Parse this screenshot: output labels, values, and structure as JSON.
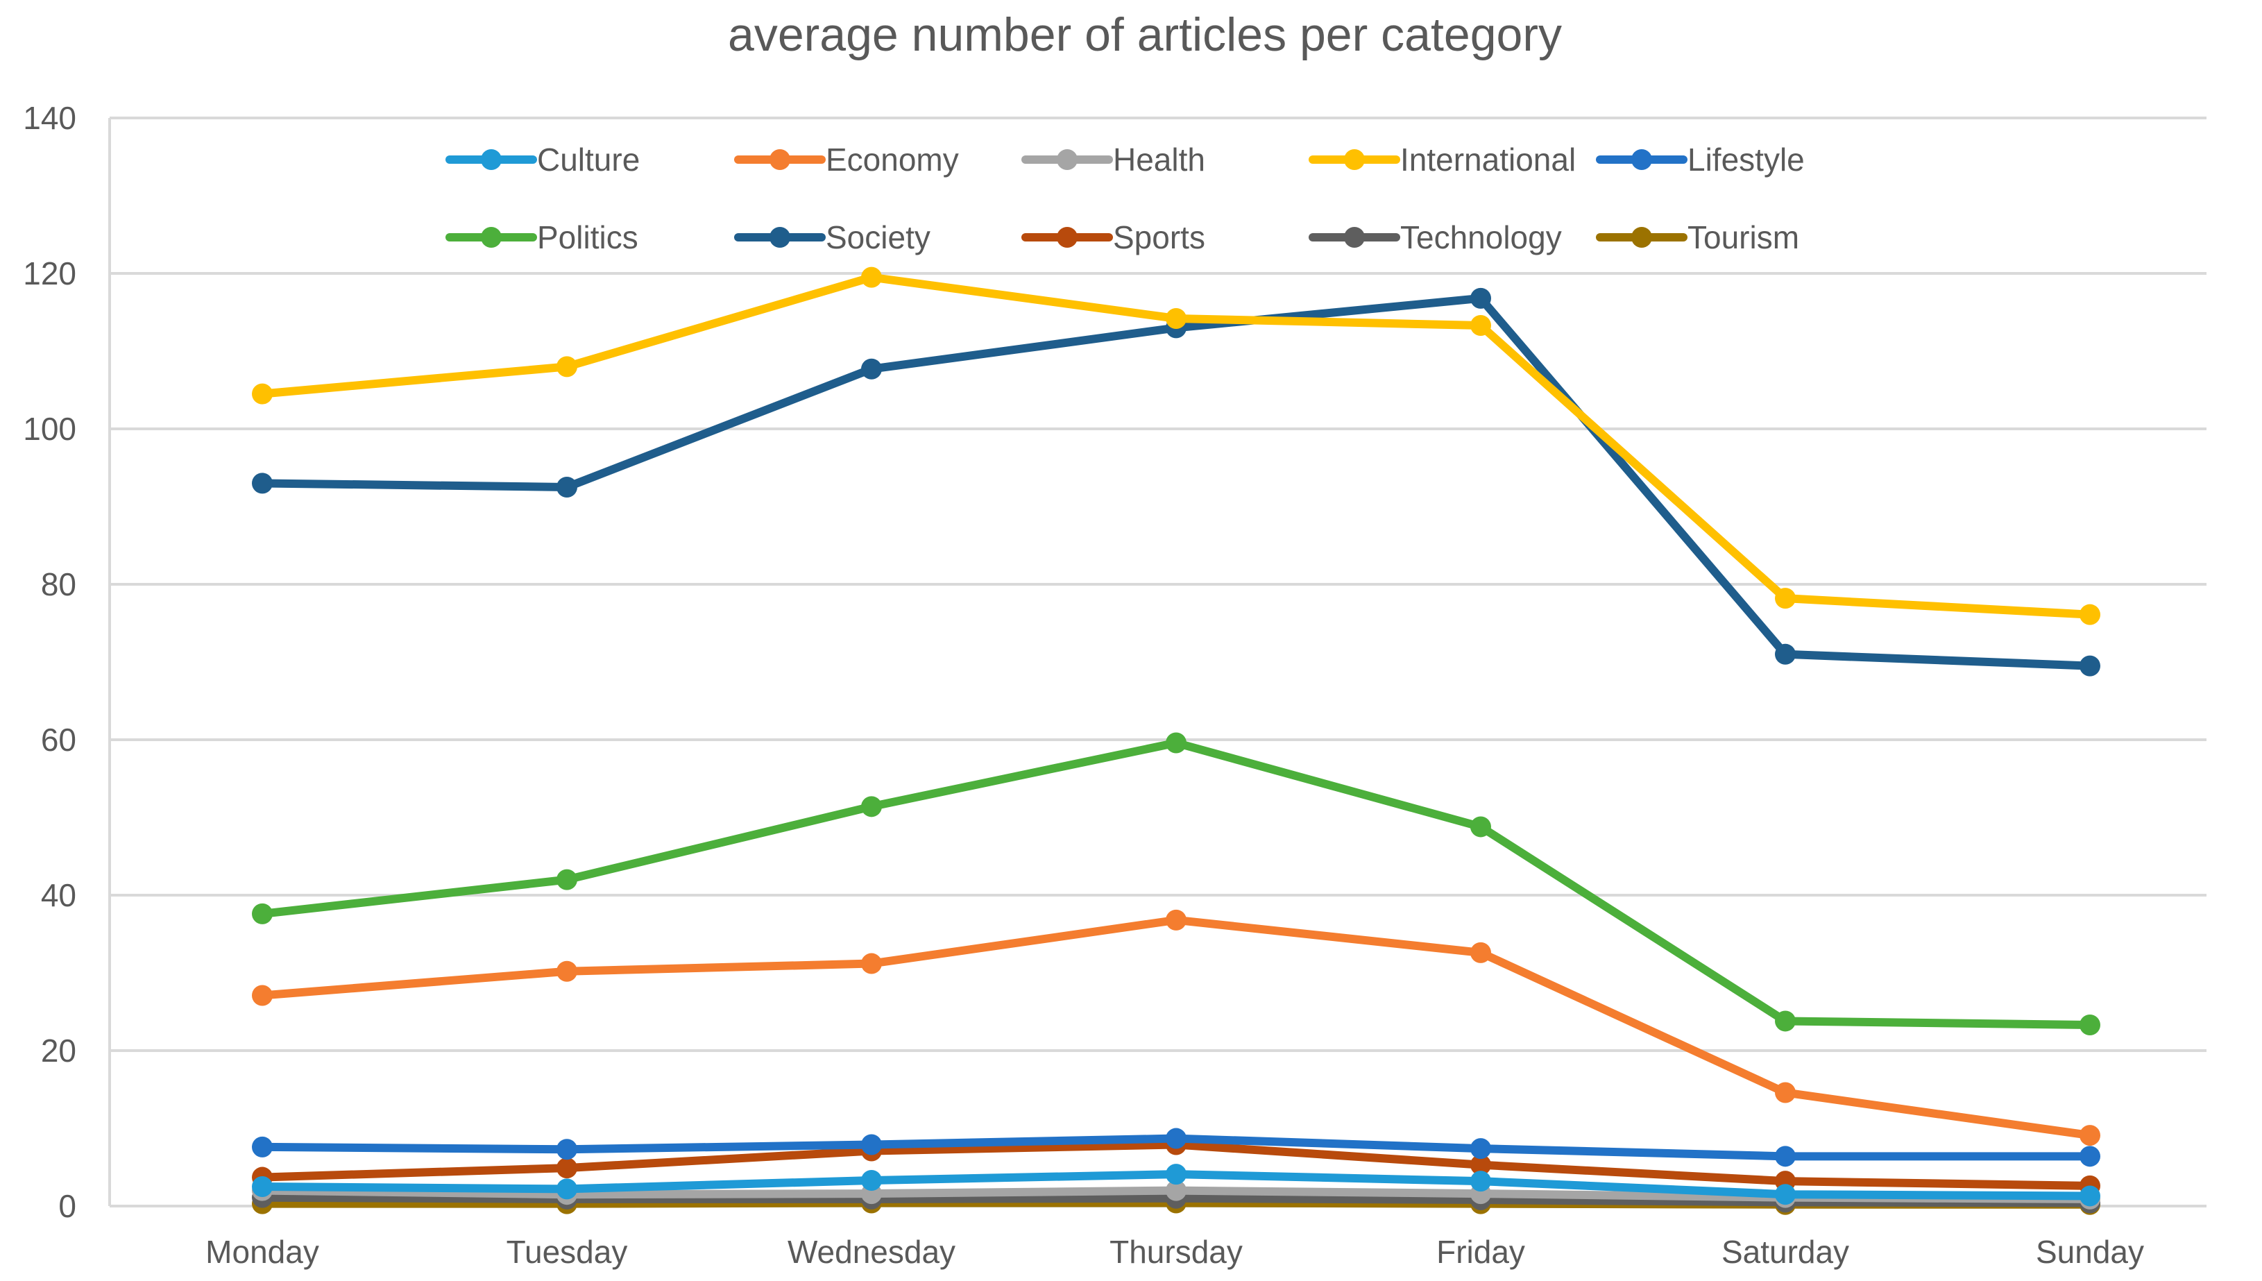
{
  "chart_data": {
    "type": "line",
    "title": "average number of articles per category",
    "xlabel": "",
    "ylabel": "",
    "categories": [
      "Monday",
      "Tuesday",
      "Wednesday",
      "Thursday",
      "Friday",
      "Saturday",
      "Sunday"
    ],
    "ylim": [
      0,
      140
    ],
    "yticks": [
      0,
      20,
      40,
      60,
      80,
      100,
      120,
      140
    ],
    "grid": true,
    "legend_position": "top",
    "series": [
      {
        "name": "Culture",
        "color": "#1f9ad6",
        "values": [
          2.5,
          2.2,
          3.3,
          4.1,
          3.2,
          1.5,
          1.3
        ]
      },
      {
        "name": "Economy",
        "color": "#f47d2f",
        "values": [
          27.1,
          30.2,
          31.2,
          36.8,
          32.6,
          14.6,
          9.1
        ]
      },
      {
        "name": "Health",
        "color": "#a5a5a5",
        "values": [
          2.0,
          1.5,
          1.6,
          2.0,
          1.6,
          1.1,
          0.9
        ]
      },
      {
        "name": "International",
        "color": "#ffc000",
        "values": [
          104.5,
          108.0,
          119.5,
          114.2,
          113.3,
          78.2,
          76.1
        ]
      },
      {
        "name": "Lifestyle",
        "color": "#2272c7",
        "values": [
          7.6,
          7.3,
          7.9,
          8.7,
          7.4,
          6.4,
          6.4
        ]
      },
      {
        "name": "Politics",
        "color": "#4caf3b",
        "values": [
          37.6,
          42.0,
          51.4,
          59.6,
          48.8,
          23.8,
          23.3
        ]
      },
      {
        "name": "Society",
        "color": "#1f5d8c",
        "values": [
          93.0,
          92.5,
          107.7,
          113.0,
          116.8,
          71.0,
          69.5
        ]
      },
      {
        "name": "Sports",
        "color": "#b84a0c",
        "values": [
          3.7,
          4.9,
          7.1,
          7.9,
          5.3,
          3.2,
          2.6
        ]
      },
      {
        "name": "Technology",
        "color": "#5e5e5e",
        "values": [
          1.1,
          0.9,
          0.9,
          1.0,
          0.8,
          0.5,
          0.4
        ]
      },
      {
        "name": "Tourism",
        "color": "#9b7200",
        "values": [
          0.3,
          0.3,
          0.4,
          0.4,
          0.3,
          0.2,
          0.2
        ]
      }
    ]
  }
}
